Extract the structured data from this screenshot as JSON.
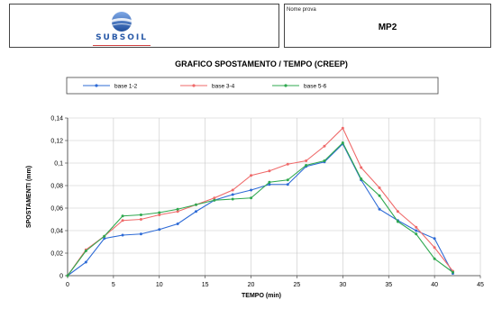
{
  "header": {
    "logo_text": "SUBSOIL",
    "test_label": "Nome prova",
    "test_value": "MP2"
  },
  "colors": {
    "base_1_2": "#2e6bd6",
    "base_3_4": "#ef6a6a",
    "base_5_6": "#2fa84f",
    "grid": "#c8c8c8",
    "logo_blue": "#2a5aa8"
  },
  "chart_data": {
    "type": "line",
    "title": "GRAFICO SPOSTAMENTO / TEMPO (CREEP)",
    "xlabel": "TEMPO (min)",
    "ylabel": "SPOSTAMENTI (mm)",
    "xlim": [
      0,
      45
    ],
    "ylim": [
      0,
      0.14
    ],
    "xticks": [
      0,
      5,
      10,
      15,
      20,
      25,
      30,
      35,
      40,
      45
    ],
    "yticks": [
      0,
      0.02,
      0.04,
      0.06,
      0.08,
      0.1,
      0.12,
      0.14
    ],
    "ytick_labels": [
      "0",
      "0,02",
      "0,04",
      "0,06",
      "0,08",
      "0,1",
      "0,12",
      "0,14"
    ],
    "grid": true,
    "legend_position": "top",
    "series": [
      {
        "name": "base 1-2",
        "x": [
          0,
          2,
          4,
          6,
          8,
          10,
          12,
          14,
          16,
          18,
          20,
          22,
          24,
          26,
          28,
          30,
          32,
          34,
          36,
          38,
          40,
          42
        ],
        "values": [
          0,
          0.012,
          0.033,
          0.036,
          0.037,
          0.041,
          0.046,
          0.057,
          0.067,
          0.072,
          0.076,
          0.081,
          0.081,
          0.097,
          0.101,
          0.117,
          0.085,
          0.059,
          0.049,
          0.04,
          0.033,
          0.002
        ]
      },
      {
        "name": "base 3-4",
        "x": [
          0,
          2,
          4,
          6,
          8,
          10,
          12,
          14,
          16,
          18,
          20,
          22,
          24,
          26,
          28,
          30,
          32,
          34,
          36,
          38,
          40,
          42
        ],
        "values": [
          0,
          0.023,
          0.035,
          0.049,
          0.05,
          0.054,
          0.057,
          0.063,
          0.069,
          0.076,
          0.089,
          0.093,
          0.099,
          0.102,
          0.115,
          0.131,
          0.096,
          0.078,
          0.057,
          0.043,
          0.025,
          0.004
        ]
      },
      {
        "name": "base 5-6",
        "x": [
          0,
          2,
          4,
          6,
          8,
          10,
          12,
          14,
          16,
          18,
          20,
          22,
          24,
          26,
          28,
          30,
          32,
          34,
          36,
          38,
          40,
          42
        ],
        "values": [
          0,
          0.022,
          0.035,
          0.053,
          0.054,
          0.056,
          0.059,
          0.063,
          0.067,
          0.068,
          0.069,
          0.083,
          0.085,
          0.098,
          0.102,
          0.118,
          0.086,
          0.071,
          0.048,
          0.037,
          0.015,
          0.003
        ]
      }
    ]
  }
}
